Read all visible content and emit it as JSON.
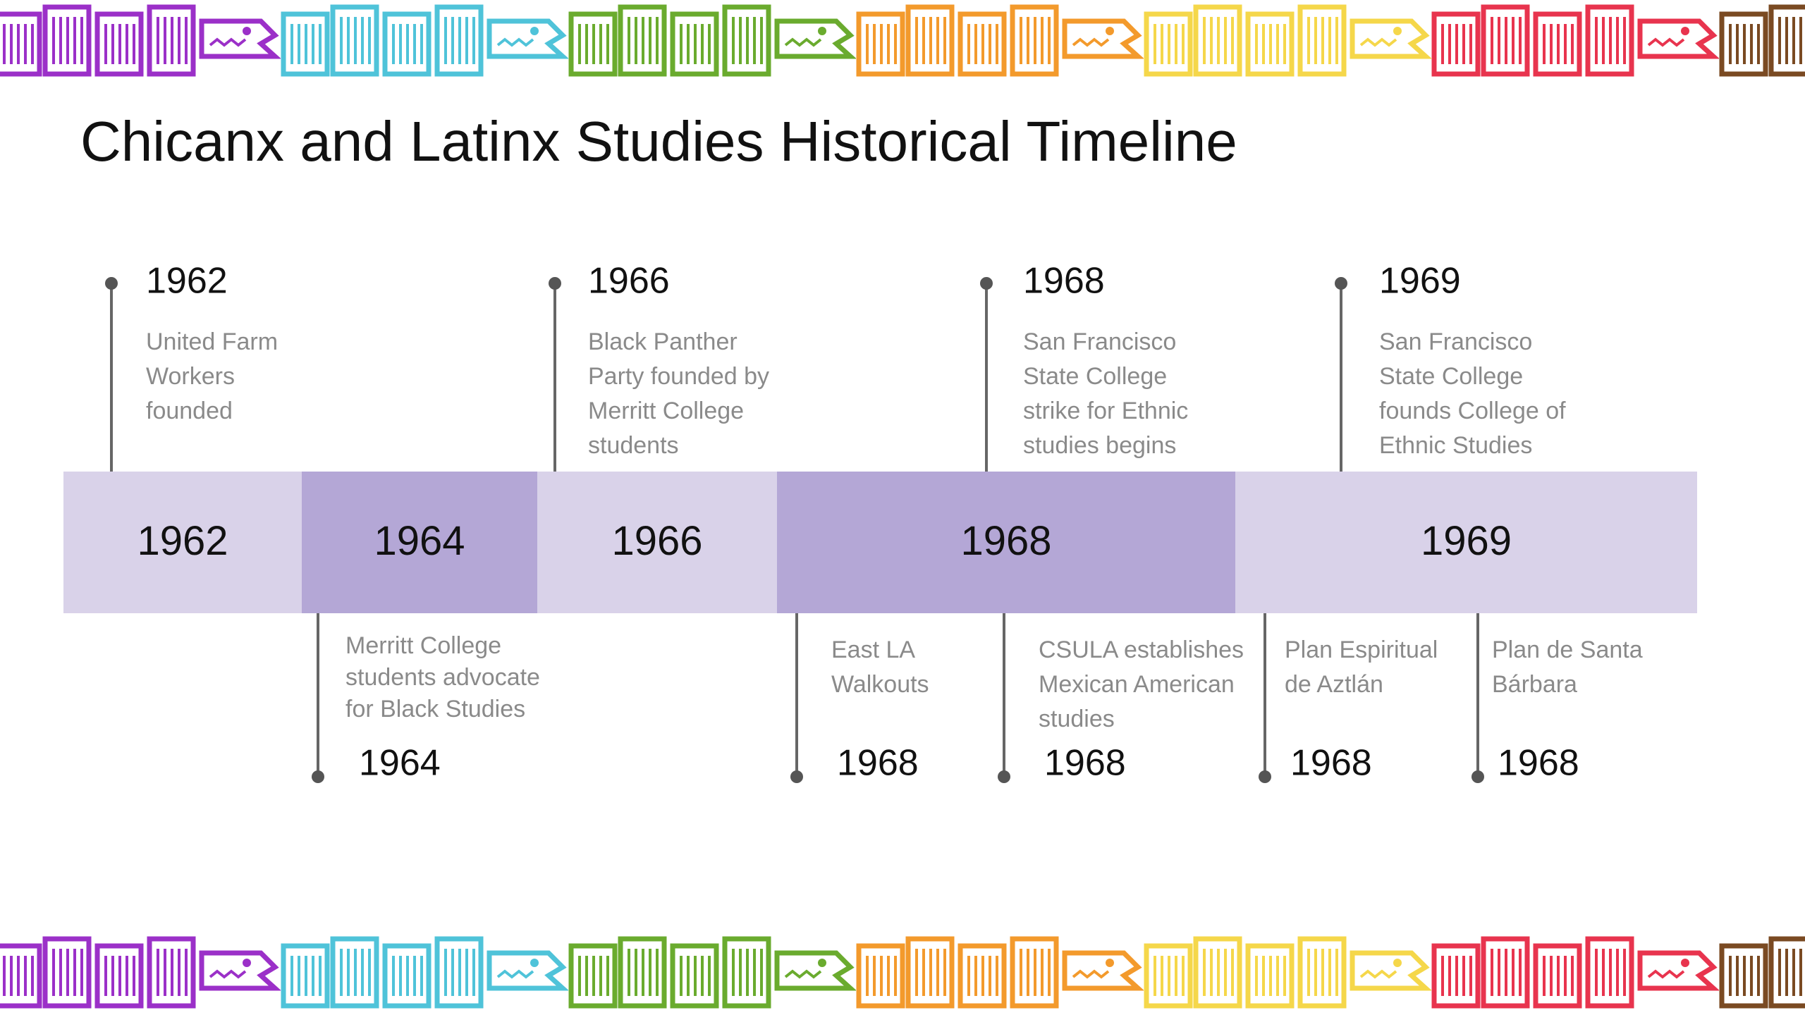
{
  "title": "Chicanx and Latinx Studies Historical Timeline",
  "band": [
    {
      "label": "1962"
    },
    {
      "label": "1964"
    },
    {
      "label": "1966"
    },
    {
      "label": "1968"
    },
    {
      "label": "1969"
    }
  ],
  "top_events": [
    {
      "year": "1962",
      "lines": [
        "United Farm",
        "Workers",
        "founded"
      ]
    },
    {
      "year": "1966",
      "lines": [
        "Black Panther",
        "Party founded by",
        "Merritt College",
        "students"
      ]
    },
    {
      "year": "1968",
      "lines": [
        "San Francisco",
        "State College",
        "strike for Ethnic",
        "studies begins"
      ]
    },
    {
      "year": "1969",
      "lines": [
        "San Francisco",
        "State College",
        "founds College of",
        "Ethnic Studies"
      ]
    }
  ],
  "bottom_events": [
    {
      "year": "1964",
      "lines": [
        "Merritt College",
        "students advocate",
        "for Black Studies"
      ]
    },
    {
      "year": "1968",
      "lines": [
        "East LA",
        "Walkouts"
      ]
    },
    {
      "year": "1968",
      "lines": [
        "CSULA establishes",
        "Mexican American",
        "studies"
      ]
    },
    {
      "year": "1968",
      "lines": [
        "Plan Espiritual",
        "de Aztlán"
      ]
    },
    {
      "year": "1968",
      "lines": [
        "Plan de Santa",
        "Bárbara"
      ]
    }
  ]
}
